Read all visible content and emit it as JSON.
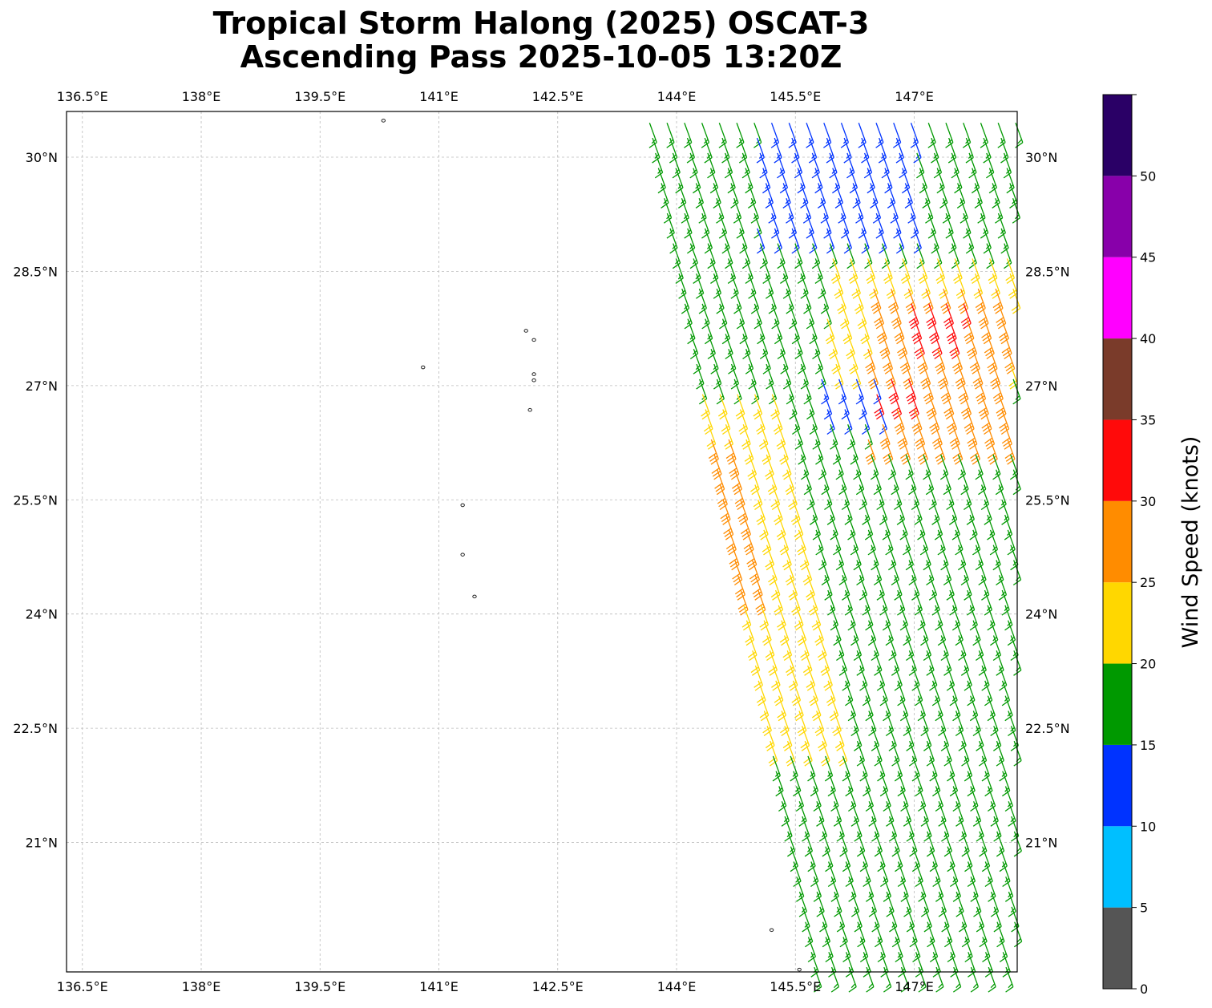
{
  "title": {
    "line1": "Tropical Storm Halong (2025) OSCAT-3",
    "line2": "Ascending Pass 2025-10-05 13:20Z"
  },
  "map": {
    "lon_range": [
      136.3,
      148.3
    ],
    "lat_range": [
      19.3,
      30.6
    ],
    "lon_ticks": [
      "136.5°E",
      "138°E",
      "139.5°E",
      "141°E",
      "142.5°E",
      "144°E",
      "145.5°E",
      "147°E"
    ],
    "lon_tick_values": [
      136.5,
      138,
      139.5,
      141,
      142.5,
      144,
      145.5,
      147
    ],
    "lat_ticks": [
      "30°N",
      "28.5°N",
      "27°N",
      "25.5°N",
      "24°N",
      "22.5°N",
      "21°N"
    ],
    "lat_tick_values": [
      30,
      28.5,
      27,
      25.5,
      24,
      22.5,
      21
    ],
    "gridlines": true,
    "coastline_color": "#222222",
    "grid_color": "#bbbbbb"
  },
  "colorbar": {
    "label": "Wind Speed (knots)",
    "tick_labels": [
      "0",
      "5",
      "10",
      "15",
      "20",
      "25",
      "30",
      "35",
      "40",
      "45",
      "50"
    ],
    "bins": [
      {
        "from": 0,
        "to": 5,
        "color": "#555555"
      },
      {
        "from": 5,
        "to": 10,
        "color": "#00bfff"
      },
      {
        "from": 10,
        "to": 15,
        "color": "#0033ff"
      },
      {
        "from": 15,
        "to": 20,
        "color": "#009900"
      },
      {
        "from": 20,
        "to": 25,
        "color": "#ffd700"
      },
      {
        "from": 25,
        "to": 30,
        "color": "#ff8c00"
      },
      {
        "from": 30,
        "to": 35,
        "color": "#ff0a0a"
      },
      {
        "from": 35,
        "to": 40,
        "color": "#7a3b2a"
      },
      {
        "from": 40,
        "to": 45,
        "color": "#ff00ff"
      },
      {
        "from": 45,
        "to": 50,
        "color": "#8800aa"
      },
      {
        "from": 50,
        "to": 55,
        "color": "#2a0066"
      }
    ]
  },
  "chart_data": {
    "type": "wind-barb-map",
    "swath_left_edge": [
      [
        143.6,
        30.5
      ],
      [
        145.7,
        19.3
      ]
    ],
    "swath_right_edge": [
      [
        148.3,
        30.5
      ],
      [
        148.3,
        19.3
      ]
    ],
    "barb_grid_spacing_deg": 0.22,
    "wind_direction_from_deg": 160,
    "speed_zones_knots": [
      {
        "region": "south and east of swath",
        "speed": 17
      },
      {
        "region": "northeast",
        "speed": 13
      },
      {
        "region": "central band",
        "speed": 22
      },
      {
        "region": "storm core",
        "speed": 28
      },
      {
        "region": "max winds",
        "speed": 32
      }
    ],
    "islands": [
      [
        140.3,
        30.48
      ],
      [
        142.1,
        27.72
      ],
      [
        142.2,
        27.6
      ],
      [
        140.8,
        27.24
      ],
      [
        142.2,
        27.15
      ],
      [
        142.2,
        27.07
      ],
      [
        142.15,
        26.68
      ],
      [
        141.3,
        25.43
      ],
      [
        141.3,
        24.78
      ],
      [
        141.45,
        24.23
      ],
      [
        145.2,
        19.85
      ],
      [
        145.55,
        19.33
      ]
    ]
  }
}
